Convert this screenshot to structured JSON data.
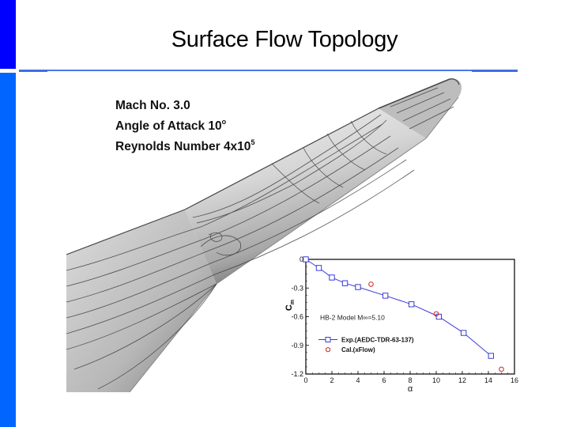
{
  "slide": {
    "title": "Surface Flow Topology",
    "accent_colors": {
      "sidebar_top": "#0000ff",
      "sidebar_bottom": "#0066ff",
      "rule": "#4a78e8"
    }
  },
  "flow_figure": {
    "description": "Surface streamline topology on a cone-cylinder-flare body",
    "params": [
      {
        "label": "Mach No. 3.0",
        "sup": ""
      },
      {
        "label": "Angle of Attack 10",
        "sup": "o"
      },
      {
        "label": "Reynolds Number 4x10",
        "sup": "5"
      }
    ]
  },
  "chart_data": {
    "type": "scatter",
    "title": "",
    "annotation": "HB-2 Model  M∞=5.10",
    "xlabel": "α",
    "ylabel": "Cm",
    "xlim": [
      0,
      16
    ],
    "ylim": [
      -1.2,
      0
    ],
    "xticks": [
      0,
      2,
      4,
      6,
      8,
      10,
      12,
      14,
      16
    ],
    "yticks": [
      0,
      -0.3,
      -0.6,
      -0.9,
      -1.2
    ],
    "grid": false,
    "legend_position": "inside-left",
    "series": [
      {
        "name": "Exp.(AEDC-TDR-63-137)",
        "style": "line+square",
        "color": "#3b3bd9",
        "x": [
          0,
          1,
          2,
          3,
          4,
          6.1,
          8.1,
          10.2,
          12.1,
          14.2
        ],
        "y": [
          0,
          -0.09,
          -0.19,
          -0.25,
          -0.29,
          -0.38,
          -0.47,
          -0.6,
          -0.77,
          -1.01
        ]
      },
      {
        "name": "Cal.(xFlow)",
        "style": "circle",
        "color": "#cc2222",
        "x": [
          5,
          10,
          15
        ],
        "y": [
          -0.26,
          -0.57,
          -1.15
        ]
      }
    ]
  }
}
